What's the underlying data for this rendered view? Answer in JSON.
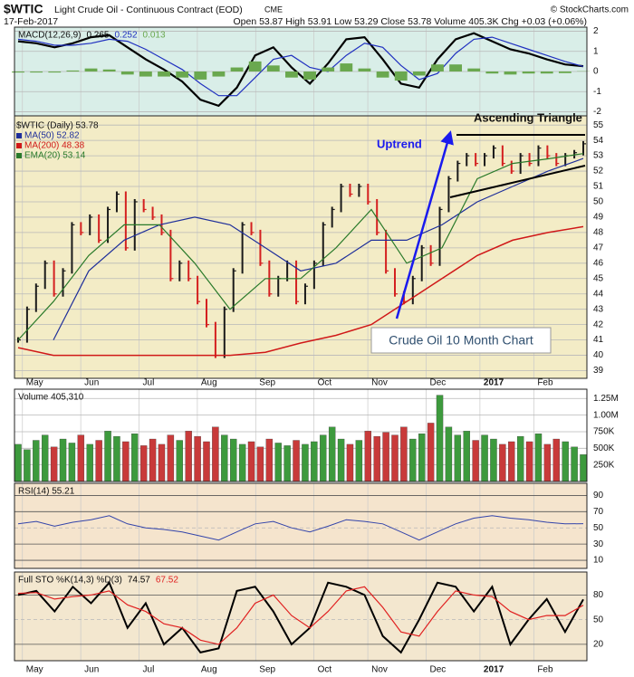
{
  "header": {
    "symbol": "$WTIC",
    "name": "Light Crude Oil - Continuous Contract (EOD)",
    "exchange": "CME",
    "date": "17-Feb-2017",
    "quote": "Open 53.87 High 53.91 Low 53.29 Close 53.78 Volume 405.3K Chg +0.03 (+0.06%)",
    "credit": "© StockCharts.com"
  },
  "chart_data": [
    {
      "type": "line",
      "title": "MACD(12,26,9)",
      "background": "#d9eee8",
      "ylim": [
        -2.2,
        2.2
      ],
      "yticks": [
        -2,
        -1,
        0,
        1,
        2
      ],
      "grid": true,
      "series": [
        {
          "name": "0.265",
          "type": "line",
          "color": "#000000",
          "width": 2.2,
          "values": [
            1.5,
            1.4,
            1.2,
            1.4,
            1.7,
            1.8,
            1.2,
            0.6,
            0.1,
            -0.5,
            -1.4,
            -1.7,
            -0.8,
            0.8,
            1.2,
            0.2,
            -0.6,
            0.4,
            1.6,
            1.7,
            0.6,
            -0.6,
            -0.8,
            0.6,
            1.6,
            1.9,
            1.5,
            1.1,
            0.9,
            0.6,
            0.35,
            0.265
          ]
        },
        {
          "name": "0.252",
          "type": "line",
          "color": "#2030c0",
          "width": 1.2,
          "values": [
            1.6,
            1.5,
            1.3,
            1.3,
            1.4,
            1.6,
            1.5,
            1.1,
            0.6,
            0.1,
            -0.6,
            -1.2,
            -1.2,
            -0.3,
            0.6,
            0.8,
            0.2,
            0,
            0.8,
            1.4,
            1.2,
            0.3,
            -0.4,
            -0.1,
            0.9,
            1.6,
            1.7,
            1.4,
            1.1,
            0.8,
            0.5,
            0.252
          ]
        },
        {
          "name": "0.013",
          "type": "histogram",
          "color": "#6aa84f",
          "values": [
            -0.05,
            -0.05,
            -0.05,
            0.05,
            0.15,
            0.1,
            -0.15,
            -0.25,
            -0.25,
            -0.3,
            -0.4,
            -0.25,
            0.2,
            0.5,
            0.3,
            -0.3,
            -0.4,
            0.2,
            0.4,
            0.15,
            -0.3,
            -0.45,
            -0.2,
            0.35,
            0.35,
            0.15,
            -0.1,
            -0.15,
            -0.1,
            -0.1,
            -0.08,
            0.013
          ]
        }
      ]
    },
    {
      "type": "ohlc",
      "background": "#f3ecc6",
      "xlim": [
        0,
        63
      ],
      "ylim": [
        38.5,
        55.6
      ],
      "yticks": [
        39,
        40,
        41,
        42,
        43,
        44,
        45,
        46,
        47,
        48,
        49,
        50,
        51,
        52,
        53,
        54,
        55
      ],
      "grid": true,
      "xticks": [
        {
          "value": 2.5,
          "label": "May"
        },
        {
          "value": 9,
          "label": "Jun"
        },
        {
          "value": 15.5,
          "label": "Jul"
        },
        {
          "value": 22,
          "label": "Aug"
        },
        {
          "value": 28.5,
          "label": "Sep"
        },
        {
          "value": 35,
          "label": "Oct"
        },
        {
          "value": 41,
          "label": "Nov"
        },
        {
          "value": 47.5,
          "label": "Dec"
        },
        {
          "value": 53.5,
          "label": "2017"
        },
        {
          "value": 59.5,
          "label": "Feb"
        }
      ],
      "series": [
        {
          "name": "$WTIC (Daily) 53.78",
          "type": "close-bars",
          "color": "#000000",
          "up_color": "#1a1a1a",
          "down_color": "#d42020",
          "values": [
            41,
            43,
            44.5,
            46,
            44,
            45.5,
            48.5,
            48,
            49,
            47.5,
            49.5,
            50.5,
            47,
            50,
            49.5,
            49,
            48,
            45,
            46,
            45,
            43.5,
            42,
            40,
            43,
            45.5,
            48.5,
            48,
            46,
            44,
            45,
            46,
            43.5,
            44.5,
            46,
            48.5,
            49.5,
            51,
            50.5,
            51,
            50,
            48,
            45.5,
            44,
            43.5,
            45,
            47,
            46,
            49.5,
            51.5,
            52.5,
            53,
            52.5,
            53,
            53.5,
            52.5,
            52,
            53,
            52.5,
            53.5,
            53,
            52.5,
            53,
            53.2,
            53.78
          ]
        },
        {
          "name": "MA(50) 52.82",
          "type": "line",
          "color": "#1f2f9a",
          "width": 1.2,
          "values": [
            null,
            41,
            45.5,
            47.5,
            48.5,
            49,
            48.5,
            47,
            45.5,
            46,
            47.5,
            47.5,
            48.5,
            50,
            51,
            52,
            52.82
          ]
        },
        {
          "name": "MA(200) 48.38",
          "type": "line",
          "color": "#d01818",
          "width": 1.5,
          "values": [
            40.5,
            40,
            40,
            40,
            40,
            40,
            40,
            40.2,
            40.8,
            41.3,
            42,
            43.5,
            45,
            46.5,
            47.5,
            48,
            48.38
          ]
        },
        {
          "name": "EMA(20) 53.14",
          "type": "line",
          "color": "#2a7a2a",
          "width": 1.2,
          "values": [
            41,
            43.5,
            46.5,
            48.5,
            48.5,
            46,
            43,
            45,
            45,
            47,
            49.5,
            46,
            47,
            51.5,
            52.5,
            52.8,
            53.14
          ]
        }
      ],
      "annotations": {
        "uptrend": "Uptrend",
        "pattern": "Ascending Triangle",
        "caption": "Crude Oil 10 Month Chart"
      }
    },
    {
      "type": "bar",
      "background": "#ffffff",
      "ylim": [
        0,
        1390000
      ],
      "yticks": [
        {
          "value": 250000,
          "label": "250K"
        },
        {
          "value": 500000,
          "label": "500K"
        },
        {
          "value": 750000,
          "label": "750K"
        },
        {
          "value": 1000000,
          "label": "1.00M"
        },
        {
          "value": 1250000,
          "label": "1.25M"
        }
      ],
      "grid": true,
      "series": [
        {
          "name": "Volume 405,310",
          "type": "volume-bars",
          "up_color": "#3d9a3d",
          "down_color": "#c83a3a",
          "values": [
            560000,
            480000,
            620000,
            700000,
            520000,
            640000,
            580000,
            700000,
            560000,
            620000,
            760000,
            680000,
            600000,
            720000,
            540000,
            640000,
            560000,
            700000,
            620000,
            760000,
            680000,
            600000,
            820000,
            700000,
            640000,
            560000,
            600000,
            520000,
            640000,
            580000,
            540000,
            620000,
            560000,
            600000,
            700000,
            820000,
            640000,
            560000,
            620000,
            760000,
            680000,
            740000,
            700000,
            820000,
            640000,
            720000,
            880000,
            1300000,
            820000,
            700000,
            760000,
            620000,
            700000,
            640000,
            560000,
            600000,
            680000,
            600000,
            720000,
            560000,
            640000,
            600000,
            520000,
            405310
          ]
        }
      ]
    },
    {
      "type": "line",
      "background": "#f5e4cd",
      "ylim": [
        0,
        105
      ],
      "yticks": [
        10,
        30,
        50,
        70,
        90
      ],
      "grid": true,
      "series": [
        {
          "name": "RSI(14) 55.21",
          "type": "line",
          "color": "#3344aa",
          "width": 1,
          "values": [
            55,
            58,
            52,
            57,
            60,
            65,
            55,
            50,
            48,
            45,
            40,
            35,
            45,
            55,
            58,
            50,
            45,
            52,
            60,
            58,
            55,
            45,
            35,
            45,
            55,
            62,
            65,
            62,
            60,
            57,
            55,
            55.21
          ]
        }
      ]
    },
    {
      "type": "line",
      "title": "Full STO %K(14,3) %D(3)",
      "background": "#f3e7cf",
      "ylim": [
        0,
        108
      ],
      "yticks": [
        20,
        50,
        80
      ],
      "grid": true,
      "xticks": [
        {
          "value": 2.5,
          "label": "May"
        },
        {
          "value": 9,
          "label": "Jun"
        },
        {
          "value": 15.5,
          "label": "Jul"
        },
        {
          "value": 22,
          "label": "Aug"
        },
        {
          "value": 28.5,
          "label": "Sep"
        },
        {
          "value": 35,
          "label": "Oct"
        },
        {
          "value": 41,
          "label": "Nov"
        },
        {
          "value": 47.5,
          "label": "Dec"
        },
        {
          "value": 53.5,
          "label": "2017"
        },
        {
          "value": 59.5,
          "label": "Feb"
        }
      ],
      "series": [
        {
          "name": "74.57",
          "type": "line",
          "color": "#000000",
          "width": 2,
          "values": [
            80,
            85,
            60,
            90,
            70,
            95,
            40,
            70,
            20,
            40,
            10,
            15,
            85,
            90,
            60,
            20,
            40,
            95,
            90,
            80,
            30,
            10,
            50,
            95,
            90,
            60,
            90,
            20,
            50,
            75,
            35,
            74.57
          ]
        },
        {
          "name": "67.52",
          "type": "line",
          "color": "#e02020",
          "width": 1.2,
          "values": [
            82,
            83,
            75,
            78,
            80,
            85,
            68,
            60,
            45,
            40,
            25,
            20,
            40,
            70,
            80,
            55,
            40,
            60,
            85,
            90,
            65,
            35,
            30,
            60,
            85,
            80,
            78,
            60,
            50,
            55,
            55,
            67.52
          ]
        }
      ]
    }
  ]
}
